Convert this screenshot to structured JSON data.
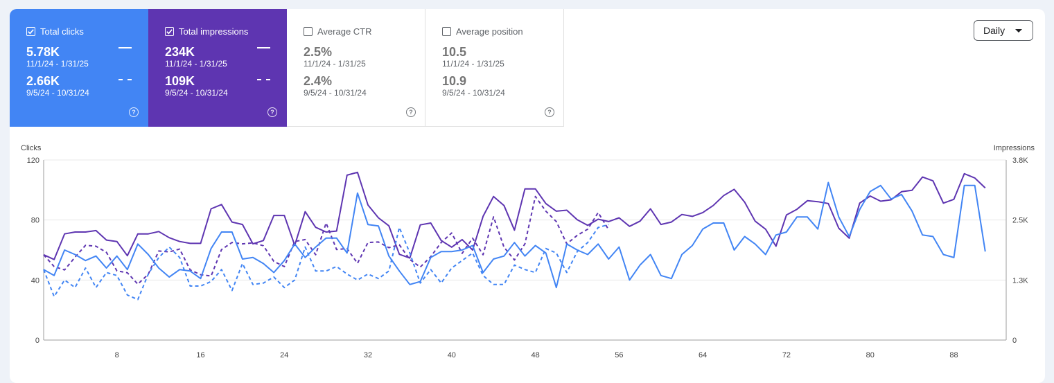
{
  "metrics": {
    "clicks": {
      "label": "Total clicks",
      "current_value": "5.78K",
      "current_range": "11/1/24 - 1/31/25",
      "previous_value": "2.66K",
      "previous_range": "9/5/24 - 10/31/24",
      "help": "?"
    },
    "impressions": {
      "label": "Total impressions",
      "current_value": "234K",
      "current_range": "11/1/24 - 1/31/25",
      "previous_value": "109K",
      "previous_range": "9/5/24 - 10/31/24",
      "help": "?"
    },
    "ctr": {
      "label": "Average CTR",
      "current_value": "2.5%",
      "current_range": "11/1/24 - 1/31/25",
      "previous_value": "2.4%",
      "previous_range": "9/5/24 - 10/31/24",
      "help": "?"
    },
    "position": {
      "label": "Average position",
      "current_value": "10.5",
      "current_range": "11/1/24 - 1/31/25",
      "previous_value": "10.9",
      "previous_range": "9/5/24 - 10/31/24",
      "help": "?"
    }
  },
  "period_select": {
    "value": "Daily"
  },
  "icons": {
    "checkbox": "check-icon",
    "help": "help-circle-icon",
    "dropdown": "caret-down-icon"
  },
  "colors": {
    "clicks": "#4285f4",
    "impressions": "#5e35b1",
    "grid": "#e8e8e8",
    "axis_text": "#444444"
  },
  "chart_data": {
    "type": "line",
    "ylabel_left": "Clicks",
    "ylabel_right": "Impressions",
    "y_left_ticks": [
      0,
      40,
      80,
      120
    ],
    "y_left_range": [
      0,
      120
    ],
    "y_right_ticks": [
      "0",
      "1.3K",
      "2.5K",
      "3.8K"
    ],
    "y_right_range": [
      0,
      3800
    ],
    "x_ticks": [
      8,
      16,
      24,
      32,
      40,
      48,
      56,
      64,
      72,
      80,
      88
    ],
    "x_range": [
      1,
      93
    ],
    "grid": true,
    "series": [
      {
        "metric": "impressions",
        "period": "current",
        "style": "solid",
        "values": [
          1800,
          1700,
          2240,
          2280,
          2280,
          2310,
          2110,
          2080,
          1780,
          2240,
          2240,
          2290,
          2160,
          2080,
          2040,
          2040,
          2770,
          2860,
          2490,
          2440,
          2030,
          2100,
          2630,
          2630,
          2000,
          2710,
          2380,
          2280,
          2300,
          3480,
          3540,
          2850,
          2580,
          2410,
          1810,
          1730,
          2430,
          2470,
          2100,
          1960,
          2120,
          1900,
          2610,
          3030,
          2840,
          2320,
          3190,
          3190,
          2880,
          2720,
          2740,
          2540,
          2420,
          2550,
          2500,
          2580,
          2400,
          2510,
          2770,
          2440,
          2490,
          2650,
          2610,
          2690,
          2840,
          3050,
          3180,
          2910,
          2510,
          2340,
          1980,
          2640,
          2760,
          2940,
          2920,
          2880,
          2360,
          2150,
          2890,
          3040,
          2930,
          2960,
          3130,
          3160,
          3440,
          3360,
          2890,
          2970,
          3510,
          3420,
          3210
        ]
      },
      {
        "metric": "impressions",
        "period": "previous",
        "style": "dashed",
        "values": [
          1800,
          1550,
          1480,
          1750,
          2000,
          1980,
          1850,
          1460,
          1420,
          1180,
          1390,
          1880,
          1860,
          1920,
          1480,
          1380,
          1350,
          1910,
          2060,
          2030,
          2050,
          1990,
          1660,
          1550,
          2080,
          2120,
          1800,
          2470,
          1910,
          1930,
          1620,
          2060,
          2070,
          1950,
          2010,
          1700,
          1540,
          1760,
          2060,
          2260,
          1830,
          2150,
          1800,
          2600,
          1960,
          1690,
          2030,
          3030,
          2720,
          2500,
          2030,
          2210,
          2340,
          2690,
          2330
        ]
      },
      {
        "metric": "clicks",
        "period": "current",
        "style": "solid",
        "values": [
          47,
          43,
          60,
          57,
          53,
          56,
          48,
          56,
          47,
          64,
          57,
          48,
          42,
          47,
          46,
          41,
          61,
          72,
          72,
          54,
          55,
          51,
          45,
          53,
          64,
          55,
          62,
          68,
          68,
          58,
          98,
          77,
          76,
          56,
          46,
          37,
          39,
          55,
          59,
          59,
          60,
          63,
          45,
          54,
          56,
          65,
          56,
          63,
          58,
          35,
          64,
          60,
          57,
          64,
          54,
          62,
          40,
          50,
          57,
          43,
          41,
          57,
          63,
          74,
          78,
          78,
          60,
          69,
          64,
          57,
          70,
          72,
          82,
          82,
          74,
          105,
          82,
          69,
          87,
          99,
          103,
          94,
          97,
          86,
          70,
          69,
          57,
          55,
          103,
          103,
          59
        ]
      },
      {
        "metric": "clicks",
        "period": "previous",
        "style": "dashed",
        "values": [
          47,
          29,
          40,
          35,
          48,
          35,
          45,
          43,
          30,
          27,
          44,
          55,
          62,
          55,
          36,
          36,
          39,
          47,
          33,
          51,
          37,
          38,
          42,
          35,
          40,
          62,
          46,
          46,
          49,
          44,
          40,
          44,
          41,
          46,
          75,
          58,
          38,
          47,
          38,
          48,
          53,
          58,
          43,
          37,
          37,
          50,
          47,
          45,
          61,
          58,
          45,
          59,
          65,
          75,
          77
        ]
      }
    ]
  }
}
